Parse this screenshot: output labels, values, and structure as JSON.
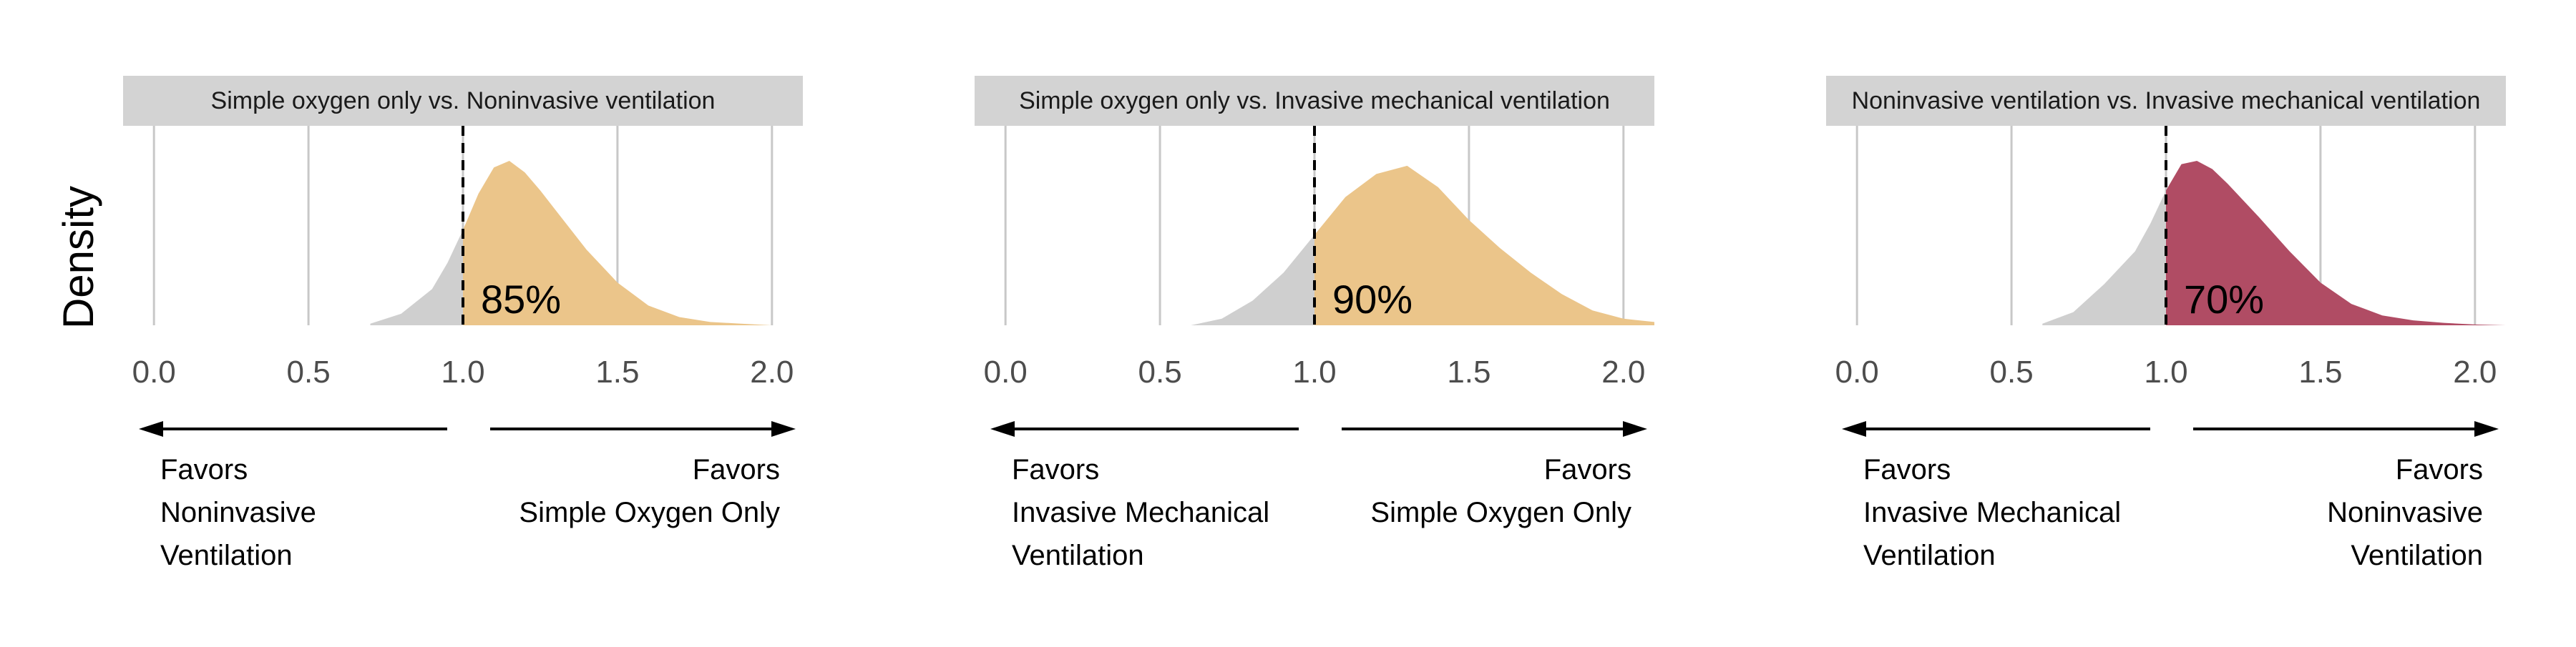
{
  "y_axis_label": "Density",
  "chart_data": [
    {
      "type": "area",
      "title": "Simple oxygen only vs. Noninvasive ventilation",
      "xlabel": "",
      "ylabel": "Density",
      "xlim": [
        -0.1,
        2.1
      ],
      "x_ticks": [
        "0.0",
        "0.5",
        "1.0",
        "1.5",
        "2.0"
      ],
      "reference_line": 1.0,
      "probability_label": "85%",
      "highlight_color": "#EBC58A",
      "below_color": "#CFCFCF",
      "left_favors": [
        "Favors",
        "Noninvasive",
        "Ventilation"
      ],
      "right_favors": [
        "Favors",
        "Simple Oxygen Only"
      ],
      "density": {
        "x": [
          0.7,
          0.8,
          0.9,
          0.95,
          1.0,
          1.05,
          1.1,
          1.15,
          1.2,
          1.25,
          1.3,
          1.4,
          1.5,
          1.6,
          1.7,
          1.8,
          1.9,
          2.0
        ],
        "y": [
          0.01,
          0.07,
          0.22,
          0.38,
          0.58,
          0.8,
          0.96,
          1.0,
          0.93,
          0.82,
          0.7,
          0.46,
          0.26,
          0.12,
          0.05,
          0.02,
          0.01,
          0.0
        ]
      }
    },
    {
      "type": "area",
      "title": "Simple oxygen only vs. Invasive mechanical ventilation",
      "xlabel": "",
      "ylabel": "",
      "xlim": [
        -0.1,
        2.1
      ],
      "x_ticks": [
        "0.0",
        "0.5",
        "1.0",
        "1.5",
        "2.0"
      ],
      "reference_line": 1.0,
      "probability_label": "90%",
      "highlight_color": "#EBC58A",
      "below_color": "#CFCFCF",
      "left_favors": [
        "Favors",
        "Invasive Mechanical",
        "Ventilation"
      ],
      "right_favors": [
        "Favors",
        "Simple Oxygen Only"
      ],
      "density": {
        "x": [
          0.6,
          0.7,
          0.8,
          0.9,
          1.0,
          1.1,
          1.2,
          1.3,
          1.4,
          1.5,
          1.6,
          1.7,
          1.8,
          1.9,
          2.0,
          2.1
        ],
        "y": [
          0.0,
          0.04,
          0.15,
          0.32,
          0.55,
          0.78,
          0.92,
          0.97,
          0.84,
          0.64,
          0.47,
          0.32,
          0.19,
          0.09,
          0.04,
          0.02
        ]
      }
    },
    {
      "type": "area",
      "title": "Noninvasive ventilation vs. Invasive mechanical ventilation",
      "xlabel": "",
      "ylabel": "",
      "xlim": [
        -0.1,
        2.1
      ],
      "x_ticks": [
        "0.0",
        "0.5",
        "1.0",
        "1.5",
        "2.0"
      ],
      "reference_line": 1.0,
      "probability_label": "70%",
      "highlight_color": "#B04C64",
      "below_color": "#CFCFCF",
      "left_favors": [
        "Favors",
        "Invasive Mechanical",
        "Ventilation"
      ],
      "right_favors": [
        "Favors",
        "Noninvasive",
        "Ventilation"
      ],
      "density": {
        "x": [
          0.6,
          0.7,
          0.8,
          0.9,
          0.95,
          1.0,
          1.05,
          1.1,
          1.15,
          1.2,
          1.3,
          1.4,
          1.5,
          1.6,
          1.7,
          1.8,
          1.9,
          2.0,
          2.1
        ],
        "y": [
          0.01,
          0.08,
          0.25,
          0.45,
          0.62,
          0.82,
          0.98,
          1.0,
          0.95,
          0.86,
          0.66,
          0.45,
          0.26,
          0.13,
          0.06,
          0.03,
          0.015,
          0.005,
          0.0
        ]
      }
    }
  ]
}
